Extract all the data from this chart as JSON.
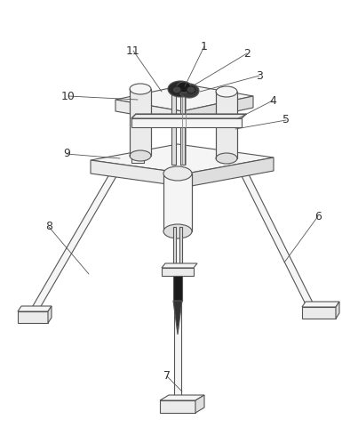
{
  "bg_color": "#ffffff",
  "line_color": "#555555",
  "line_width": 0.8,
  "label_color": "#333333",
  "label_fontsize": 9,
  "figsize": [
    4.03,
    4.99
  ],
  "dpi": 100,
  "fill_light": "#f5f5f5",
  "fill_mid": "#ebebeb",
  "fill_dark": "#dedede",
  "fill_darkest": "#222222"
}
